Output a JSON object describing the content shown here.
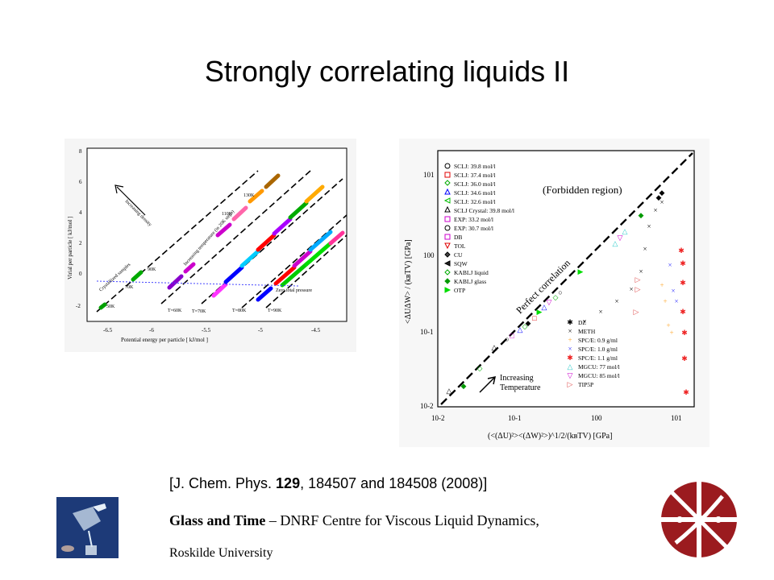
{
  "slide": {
    "title": "Strongly correlating liquids II",
    "citation": {
      "prefix": "[J. Chem. Phys. ",
      "volume": "129",
      "suffix": ", 184507 and 184508 (2008)]"
    },
    "footer": {
      "bold": "Glass and Time",
      "rest": " – DNRF Centre for Viscous Liquid Dynamics,",
      "line2": "Roskilde University"
    }
  },
  "left_figure": {
    "ylabel": "Virial per particle [ kJ/mol ]",
    "xlabel": "Potential energy per particle [ kJ/mol ]",
    "xticks": [
      "-6.5",
      "-6",
      "-5.5",
      "-5",
      "-4.5"
    ],
    "yticks": [
      "8",
      "6",
      "4",
      "2",
      "0",
      "-2"
    ],
    "annotations": {
      "increasing_density": "Increasing density",
      "increasing_temperature": "Increasing temperature (in 20K steps)",
      "crystallized": "Crystallized samples",
      "zero_pressure": "Zero total pressure",
      "t60": "T=60K",
      "t70": "T=70K",
      "t80": "T=80K",
      "t90": "T=90K",
      "k50": "50K",
      "k70": "70K",
      "k90": "90K",
      "k110": "110K",
      "k130": "130K"
    }
  },
  "right_figure": {
    "ylabel": "<ΔUΔW> / (kʙTV) [GPa]",
    "xlabel": "(<(ΔU)²><(ΔW)²>)^1/2/(kʙTV)  [GPa]",
    "xticks": [
      "10-2",
      "10-1",
      "100",
      "101"
    ],
    "yticks": [
      "101",
      "100",
      "10-1",
      "10-2"
    ],
    "forbidden": "(Forbidden region)",
    "perfect": "Perfect correlation",
    "increasing_temperature": [
      "Increasing",
      "Temperature"
    ],
    "legend_left": [
      "SCLJ: 39.8 mol/l",
      "SCLJ: 37.4 mol/l",
      "SCLJ: 36.0 mol/l",
      "SCLJ: 34.6 mol/l",
      "SCLJ: 32.6 mol/l",
      "SCLJ Crystal: 39.8 mol/l",
      "EXP: 33.2 mol/l",
      "EXP: 30.7 mol/l",
      "DB",
      "TOL",
      "CU",
      "SQW",
      "KABLJ liquid",
      "KABLJ glass",
      "OTP"
    ],
    "legend_right": [
      "DZ",
      "METH",
      "SPC/E: 0.9 g/ml",
      "SPC/E: 1.0 g/ml",
      "SPC/E: 1.1 g/ml",
      "MGCU: 77 mol/l",
      "MGCU: 85 mol/l",
      "TIP5P"
    ]
  },
  "colors": {
    "logo_red": "#9b1b1f",
    "photo_blue": "#1d3a78"
  }
}
